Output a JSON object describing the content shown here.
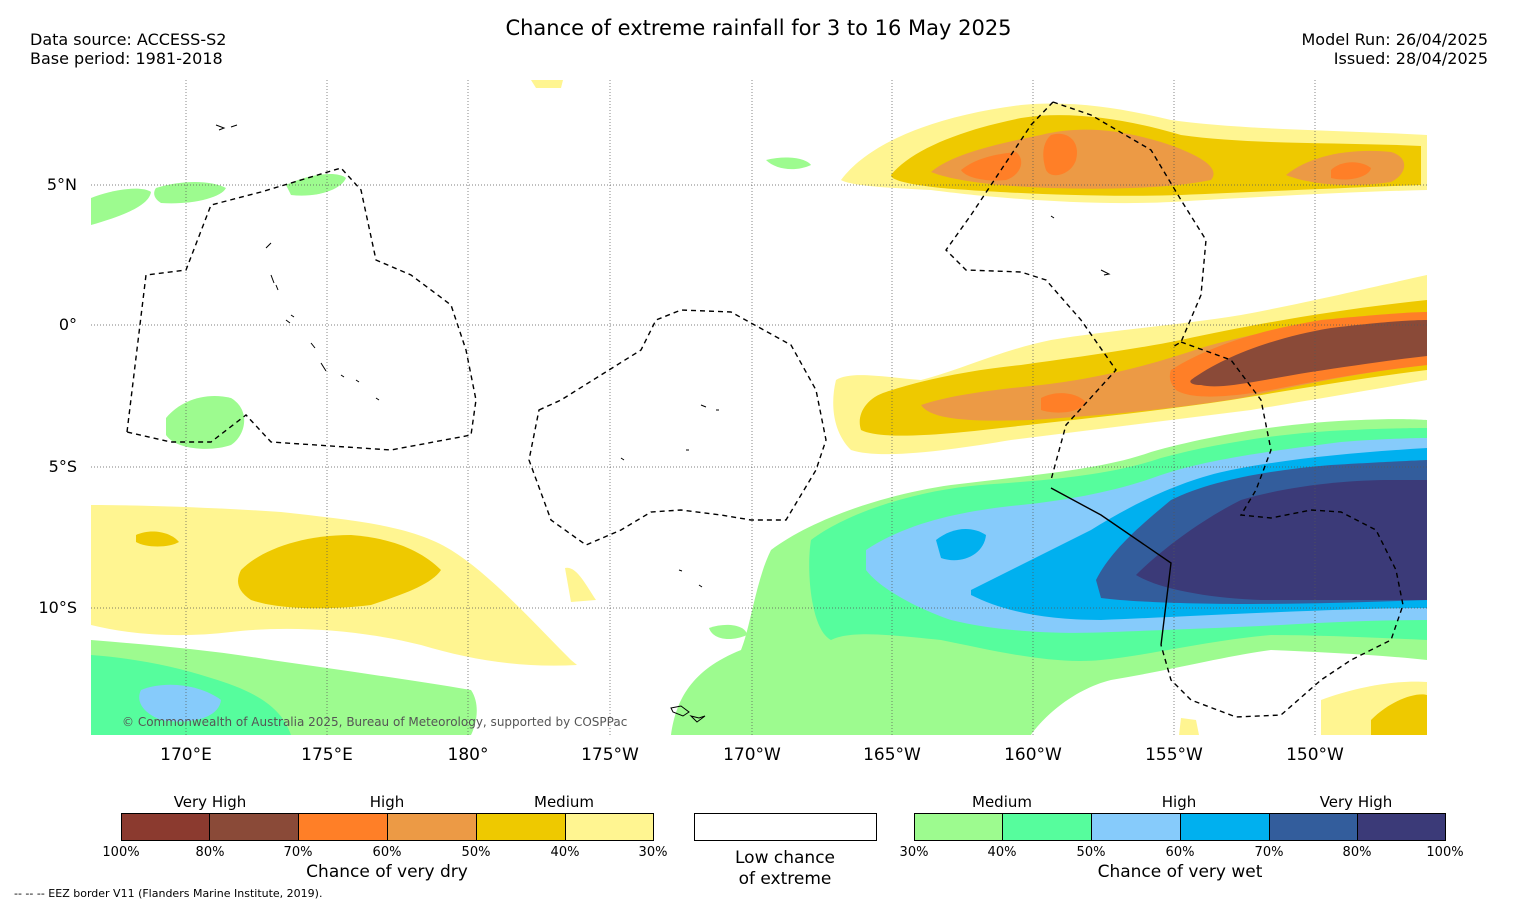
{
  "title": "Chance of extreme rainfall for 3 to 16 May 2025",
  "data_source": "Data source: ACCESS-S2",
  "base_period": "Base period: 1981-2018",
  "model_run": "Model Run: 26/04/2025",
  "issued": "Issued: 28/04/2025",
  "latitude_labels": [
    "5°N",
    "0°",
    "5°S",
    "10°S"
  ],
  "longitude_labels": [
    "170°E",
    "175°E",
    "180°",
    "175°W",
    "170°W",
    "165°W",
    "160°W",
    "155°W",
    "150°W"
  ],
  "copyright": "© Commonwealth of Australia 2025, Bureau of Meteorology, supported by COSPPac",
  "dry_legend": {
    "headers": [
      "Very High",
      "High",
      "Medium"
    ],
    "colors": [
      "#8b3a2f",
      "#8a4a38",
      "#ff7f27",
      "#ec9a45",
      "#eec900",
      "#fff591"
    ],
    "ticks": [
      "100%",
      "80%",
      "70%",
      "60%",
      "50%",
      "40%",
      "30%"
    ],
    "caption": "Chance of very dry"
  },
  "low_legend": {
    "caption_line1": "Low chance",
    "caption_line2": "of extreme",
    "color": "#ffffff"
  },
  "wet_legend": {
    "headers": [
      "Medium",
      "High",
      "Very High"
    ],
    "colors": [
      "#9dfb8f",
      "#56fd9d",
      "#86cbfb",
      "#00b0ef",
      "#335d9c",
      "#3b3a78"
    ],
    "ticks": [
      "30%",
      "40%",
      "50%",
      "60%",
      "70%",
      "80%",
      "100%"
    ],
    "caption": "Chance of very wet"
  },
  "eez_note": "-- -- -- EEZ border V11 (Flanders Marine Institute, 2019)."
}
